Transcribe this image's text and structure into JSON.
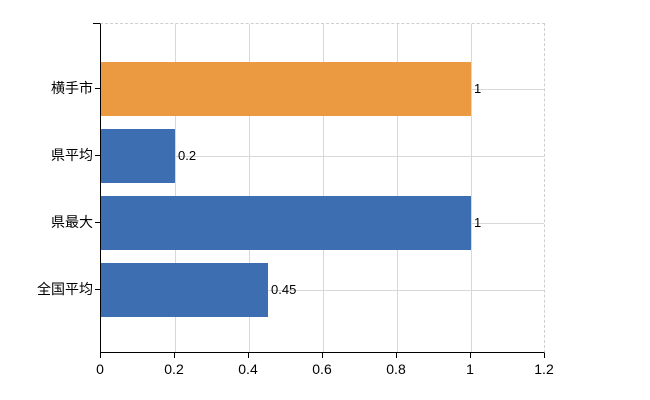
{
  "chart_data": {
    "type": "bar",
    "orientation": "horizontal",
    "title": "",
    "xlabel": "",
    "ylabel": "",
    "categories": [
      "横手市",
      "県平均",
      "県最大",
      "全国平均"
    ],
    "values": [
      1,
      0.2,
      1,
      0.45
    ],
    "value_labels": [
      "1",
      "0.2",
      "1",
      "0.45"
    ],
    "bar_colors": [
      "#ec9a41",
      "#3d6eb1",
      "#3d6eb1",
      "#3d6eb1"
    ],
    "xlim": [
      0,
      1.2
    ],
    "x_ticks": [
      0,
      0.2,
      0.4,
      0.6,
      0.8,
      1,
      1.2
    ],
    "x_tick_labels": [
      "0",
      "0.2",
      "0.4",
      "0.6",
      "0.8",
      "1",
      "1.2"
    ],
    "grid": true,
    "legend": false
  },
  "colors": {
    "highlight_bar": "#ec9a41",
    "default_bar": "#3d6eb1",
    "gridline": "#d5dad5",
    "dashed_border": "#cfcfcf",
    "axis": "#000000",
    "text": "#000000",
    "background": "#ffffff"
  }
}
